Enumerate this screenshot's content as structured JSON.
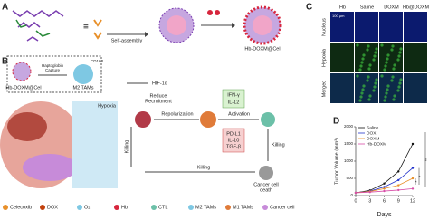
{
  "panel_a": {
    "label": "A",
    "step": "Self-assembly",
    "product": "Hb-DOXM@Cel"
  },
  "panel_b": {
    "label": "B",
    "carrier": "Hb-DOXM@Cel",
    "capture": [
      "Haptoglobin",
      "Capture"
    ],
    "receptor": "CD163",
    "m2": "M2 TAMs",
    "hypoxia": "Hypoxia",
    "hif": "HIF-1α",
    "recruit": [
      "Reduce",
      "Recruitment"
    ],
    "repolarization": "Repolarization",
    "activation": "Activation",
    "cytokines_up": [
      "IFN-γ",
      "IL-12"
    ],
    "cytokines_down": [
      "PD-L1",
      "IL-10",
      "TGF-β"
    ],
    "killing": [
      "Killing",
      "Killing",
      "Killing"
    ],
    "death": [
      "Cancer cell",
      "death"
    ],
    "legend": [
      "Celecoxib",
      "DOX",
      "O₂",
      "Hb",
      "CTL",
      "M2 TAMs",
      "M1 TAMs",
      "Cancer cell"
    ]
  },
  "panel_c": {
    "label": "C",
    "columns": [
      "Hb",
      "Saline",
      "DOXM",
      "Hb@DOXM"
    ],
    "rows": [
      "Nucleus",
      "Hypoxia",
      "Merged"
    ],
    "scale_bar": "100 μm"
  },
  "chart_data": {
    "type": "line",
    "panel_label": "D",
    "x_label": "Days",
    "y_label": "Tumor Volume (mm³)",
    "x": [
      0,
      3,
      6,
      9,
      12
    ],
    "xlim": [
      0,
      12
    ],
    "xticks": [
      0,
      3,
      6,
      9,
      12
    ],
    "ylim": [
      0,
      2000
    ],
    "yticks": [
      0,
      500,
      1000,
      1500,
      2000
    ],
    "series": [
      {
        "name": "Saline",
        "color": "#111111",
        "values": [
          80,
          150,
          350,
          700,
          1500
        ]
      },
      {
        "name": "DOX",
        "color": "#2233cc",
        "values": [
          80,
          130,
          250,
          450,
          800
        ]
      },
      {
        "name": "DOXM",
        "color": "#e8902a",
        "values": [
          80,
          120,
          200,
          300,
          500
        ]
      },
      {
        "name": "Hb-DOXM",
        "color": "#d84fa8",
        "values": [
          80,
          100,
          130,
          160,
          200
        ]
      }
    ],
    "annotations": [
      "**",
      "*",
      "*"
    ]
  }
}
